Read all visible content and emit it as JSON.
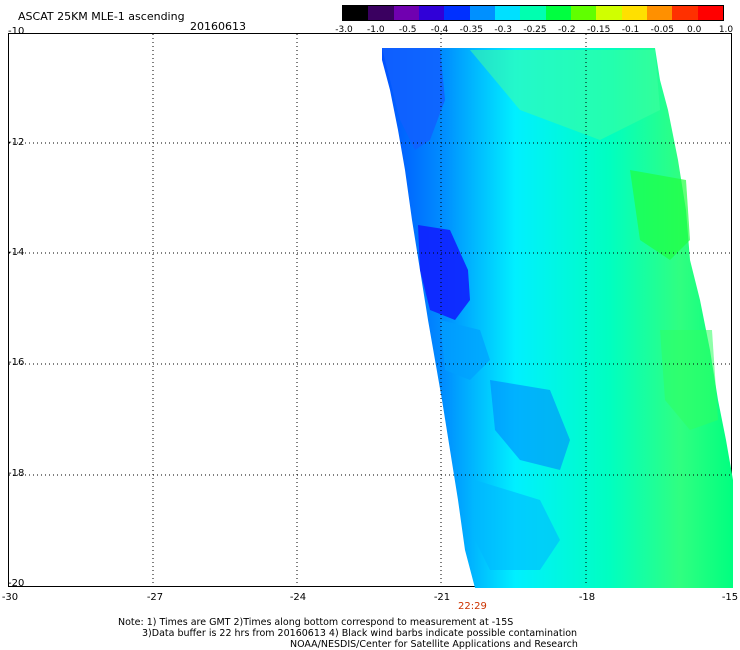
{
  "header": {
    "title": "ASCAT 25KM MLE-1 ascending",
    "date": "20160613"
  },
  "colorbar": {
    "labels": [
      "-3.0",
      "-1.0",
      "-0.5",
      "-0.4",
      "-0.35",
      "-0.3",
      "-0.25",
      "-0.2",
      "-0.15",
      "-0.1",
      "-0.05",
      "0.0",
      "1.0"
    ],
    "colors": [
      "#000000",
      "#3a0060",
      "#7000b0",
      "#3000d8",
      "#0030ff",
      "#0090ff",
      "#00e0ff",
      "#00ffb0",
      "#00ff40",
      "#60ff00",
      "#d0ff00",
      "#ffe000",
      "#ff9000",
      "#ff3000",
      "#ff0000"
    ]
  },
  "axes": {
    "y_labels": [
      "-10",
      "-12",
      "-14",
      "-16",
      "-18",
      "-20"
    ],
    "x_labels": [
      "-30",
      "-27",
      "-24",
      "-21",
      "-18",
      "-15"
    ]
  },
  "swath_time": "22:29",
  "notes": {
    "line1": "Note: 1) Times are GMT 2)Times along bottom correspond to measurement at -15S",
    "line2": "3)Data buffer is 22 hrs from 20160613 4) Black wind barbs indicate possible contamination",
    "line3": "NOAA/NESDIS/Center for Satellite Applications and Research"
  }
}
